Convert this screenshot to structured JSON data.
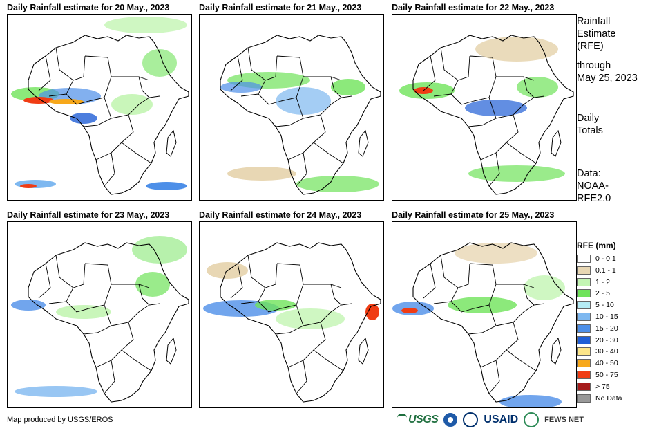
{
  "panels": [
    {
      "title": "Daily Rainfall estimate for 20 May., 2023"
    },
    {
      "title": "Daily Rainfall estimate for 21 May., 2023"
    },
    {
      "title": "Daily Rainfall estimate for 22 May., 2023"
    },
    {
      "title": "Daily Rainfall estimate for 23 May., 2023"
    },
    {
      "title": "Daily Rainfall estimate for 24 May., 2023"
    },
    {
      "title": "Daily Rainfall estimate for 25 May., 2023"
    }
  ],
  "sidebar": {
    "heading_1": "Rainfall",
    "heading_2": "Estimate",
    "heading_3": "(RFE)",
    "through_1": "through",
    "through_2": "May 25, 2023",
    "totals_1": "Daily",
    "totals_2": "Totals",
    "data_1": "Data:",
    "data_2": "NOAA-",
    "data_3": "RFE2.0"
  },
  "legend": {
    "title": "RFE (mm)",
    "items": [
      {
        "label": "0 - 0.1",
        "color": "#ffffff"
      },
      {
        "label": "0.1 - 1",
        "color": "#e8d7b4"
      },
      {
        "label": "1 - 2",
        "color": "#c3f5b3"
      },
      {
        "label": "2 - 5",
        "color": "#6fe35a"
      },
      {
        "label": "5 - 10",
        "color": "#b5ecf5"
      },
      {
        "label": "10 - 15",
        "color": "#7eb8f0"
      },
      {
        "label": "15 - 20",
        "color": "#4d8fe8"
      },
      {
        "label": "20 - 30",
        "color": "#1f5ed6"
      },
      {
        "label": "30 - 40",
        "color": "#fde68a"
      },
      {
        "label": "40 - 50",
        "color": "#f7a81b"
      },
      {
        "label": "50 - 75",
        "color": "#f03c14"
      },
      {
        "label": "> 75",
        "color": "#a61b1b"
      },
      {
        "label": "No Data",
        "color": "#999999"
      }
    ]
  },
  "footer": {
    "credit": "Map produced by USGS/EROS"
  },
  "logos": {
    "usgs": "USGS",
    "usaid": "USAID",
    "fews": "FEWS NET"
  }
}
